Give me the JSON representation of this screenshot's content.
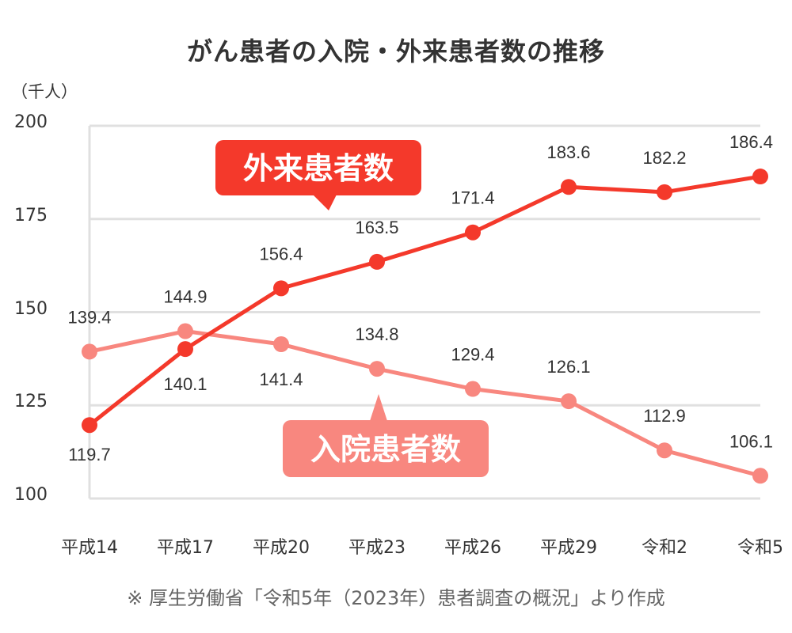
{
  "title": "がん患者の入院・外来患者数の推移",
  "unit_label": "（千人）",
  "source_note": "※ 厚生労働省「令和5年（2023年）患者調査の概況」より作成",
  "callouts": {
    "outpatient": "外来患者数",
    "inpatient": "入院患者数"
  },
  "colors": {
    "outpatient": "#f4392b",
    "inpatient": "#f8877f",
    "grid": "#e0e0e0",
    "text": "#333333",
    "note": "#666666"
  },
  "chart_data": {
    "type": "line",
    "title": "がん患者の入院・外来患者数の推移",
    "xlabel": "",
    "ylabel": "（千人）",
    "ylim": [
      100,
      200
    ],
    "yticks": [
      100,
      125,
      150,
      175,
      200
    ],
    "grid": true,
    "legend": "inline callouts",
    "categories": [
      "平成14",
      "平成17",
      "平成20",
      "平成23",
      "平成26",
      "平成29",
      "令和2",
      "令和5"
    ],
    "series": [
      {
        "name": "外来患者数",
        "values": [
          119.7,
          140.1,
          156.4,
          163.5,
          171.4,
          183.6,
          182.2,
          186.4
        ]
      },
      {
        "name": "入院患者数",
        "values": [
          139.4,
          144.9,
          141.4,
          134.8,
          129.4,
          126.1,
          112.9,
          106.1
        ]
      }
    ]
  }
}
